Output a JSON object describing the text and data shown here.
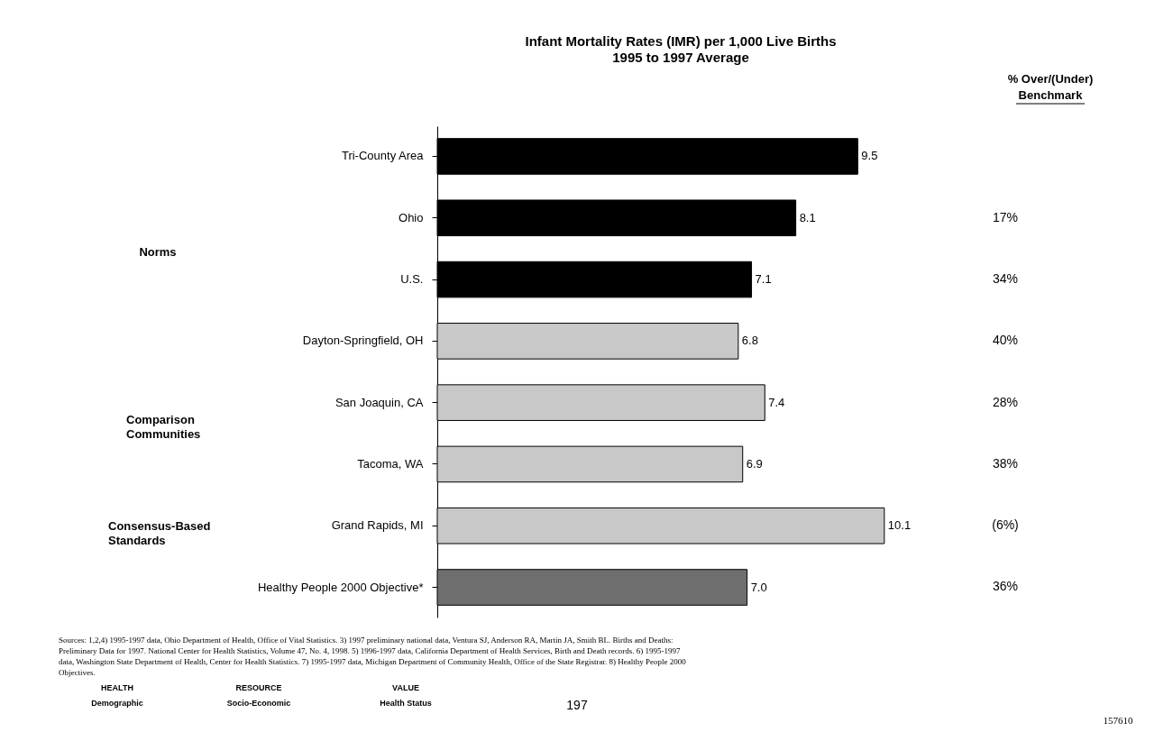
{
  "chart_data": {
    "type": "bar",
    "orientation": "horizontal",
    "title": "Infant Mortality Rates (IMR) per 1,000 Live Births",
    "subtitle": "1995 to 1997 Average",
    "categories": [
      "Tri-County Area",
      "Ohio",
      "U.S.",
      "Dayton-Springfield, OH",
      "San Joaquin, CA",
      "Tacoma, WA",
      "Grand Rapids, MI",
      "Healthy People 2000 Objective*"
    ],
    "values": [
      9.5,
      8.1,
      7.1,
      6.8,
      7.4,
      6.9,
      10.1,
      7.0
    ],
    "colors": [
      "#000000",
      "#000000",
      "#000000",
      "#c8c8c8",
      "#c8c8c8",
      "#c8c8c8",
      "#c8c8c8",
      "#6e6e6e"
    ],
    "value_labels": [
      "9.5",
      "8.1",
      "7.1",
      "6.8",
      "7.4",
      "6.9",
      "10.1",
      "7.0"
    ],
    "grid": false,
    "annotations": [
      "% Over/(Under)",
      "Benchmark",
      "Norms",
      "Comparison Communities",
      "Consensus-Based Standards",
      "17%",
      "34%",
      "40%",
      "28%",
      "38%",
      "(6%)",
      "36%",
      "Sources:   1,2,4) 1995-1997 data, Ohio Department of Health, Office of Vital Statistics. 3) 1997 preliminary national data, Ventura SJ, Anderson RA, Martin JA, Smith BL. Births and Deaths: Preliminary Data for 1997. National Center for Health Statistics, Volume 47, No. 4, 1998. 5) 1996-1997 data, California Department of Health Services, Birth and Death records. 6) 1995-1997 data, Washington State Department of Health, Center for Health Statistics. 7) 1995-1997 data, Michigan Department of Community Health, Office of the State Registrar. 8) Healthy People 2000 Objectives.",
      "HEALTH",
      "RESOURCE",
      "VALUE",
      "Demographic",
      "Socio-Economic",
      "Health Status",
      "197",
      "157610"
    ]
  }
}
